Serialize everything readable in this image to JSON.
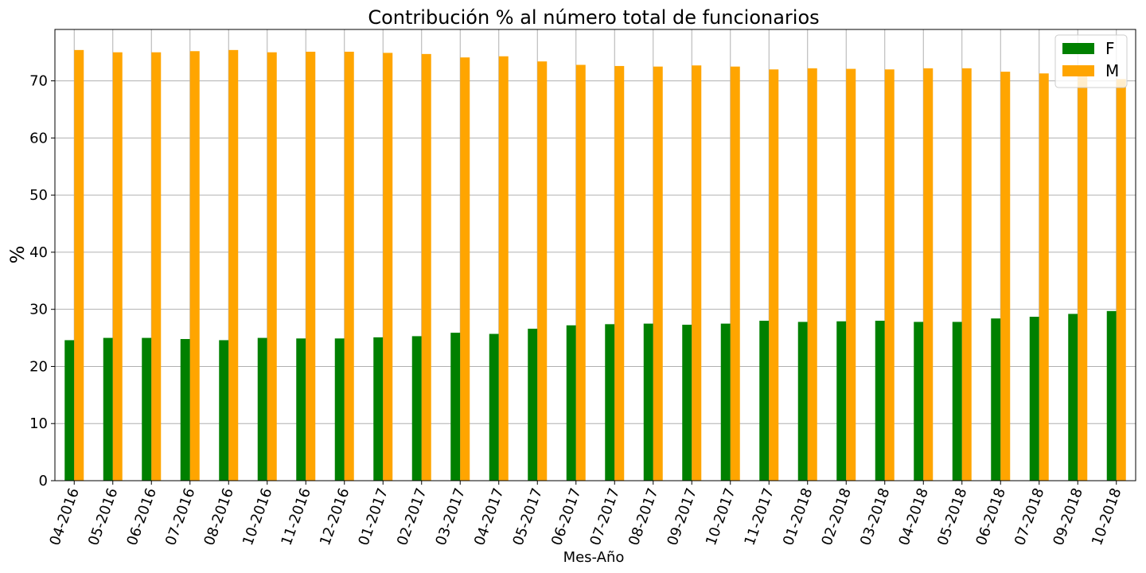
{
  "chart_data": {
    "type": "bar",
    "title": "Contribución % al número total de funcionarios",
    "xlabel": "Mes-Año",
    "ylabel": "%",
    "ylim": [
      0,
      79
    ],
    "yticks": [
      0,
      10,
      20,
      30,
      40,
      50,
      60,
      70
    ],
    "grid": true,
    "legend_position": "top-right",
    "categories": [
      "04-2016",
      "05-2016",
      "06-2016",
      "07-2016",
      "08-2016",
      "10-2016",
      "11-2016",
      "12-2016",
      "01-2017",
      "02-2017",
      "03-2017",
      "04-2017",
      "05-2017",
      "06-2017",
      "07-2017",
      "08-2017",
      "09-2017",
      "10-2017",
      "11-2017",
      "01-2018",
      "02-2018",
      "03-2018",
      "04-2018",
      "05-2018",
      "06-2018",
      "07-2018",
      "09-2018",
      "10-2018"
    ],
    "series": [
      {
        "name": "F",
        "color": "#008000",
        "values": [
          24.6,
          25.0,
          25.0,
          24.8,
          24.6,
          25.0,
          24.9,
          24.9,
          25.1,
          25.3,
          25.9,
          25.7,
          26.6,
          27.2,
          27.4,
          27.5,
          27.3,
          27.5,
          28.0,
          27.8,
          27.9,
          28.0,
          27.8,
          27.8,
          28.4,
          28.7,
          29.2,
          29.7
        ]
      },
      {
        "name": "M",
        "color": "#FFA500",
        "values": [
          75.4,
          75.0,
          75.0,
          75.2,
          75.4,
          75.0,
          75.1,
          75.1,
          74.9,
          74.7,
          74.1,
          74.3,
          73.4,
          72.8,
          72.6,
          72.5,
          72.7,
          72.5,
          72.0,
          72.2,
          72.1,
          72.0,
          72.2,
          72.2,
          71.6,
          71.3,
          70.8,
          70.3
        ]
      }
    ]
  }
}
